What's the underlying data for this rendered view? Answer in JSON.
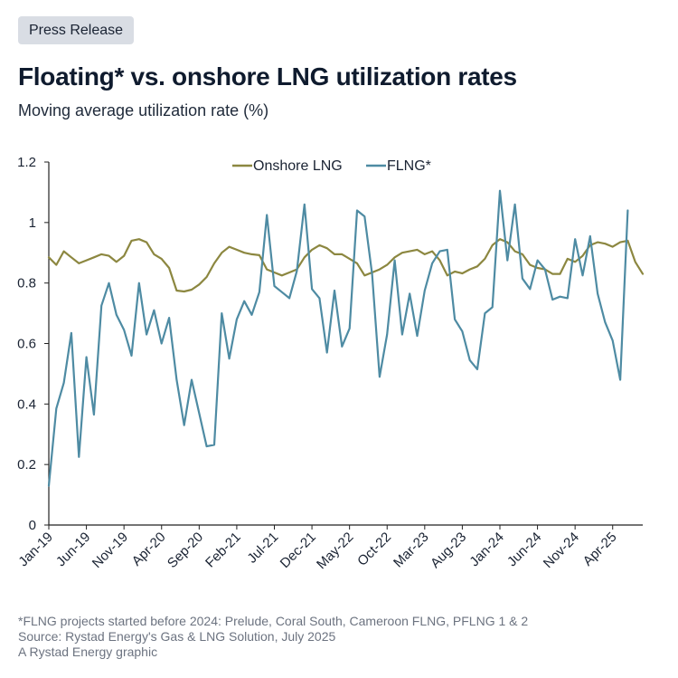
{
  "badge": "Press Release",
  "title": "Floating* vs. onshore LNG utilization rates",
  "subtitle": "Moving average utilization rate (%)",
  "footer": {
    "note": "*FLNG projects started before 2024: Prelude, Coral South, Cameroon FLNG, PFLNG 1 & 2",
    "source": "Source: Rystad Energy's Gas & LNG Solution, July 2025",
    "credit": "A Rystad Energy graphic"
  },
  "colors": {
    "onshore": "#8c8740",
    "flng": "#4e8ba3",
    "axis": "#222222",
    "text": "#1a2333"
  },
  "chart_data": {
    "type": "line",
    "title": "Floating* vs. onshore LNG utilization rates",
    "xlabel": "",
    "ylabel": "Moving average utilization rate (%)",
    "ylim": [
      0,
      1.2
    ],
    "yticks": [
      "0",
      "0.2",
      "0.4",
      "0.6",
      "0.8",
      "1",
      "1.2"
    ],
    "ytick_values": [
      0,
      0.2,
      0.4,
      0.6,
      0.8,
      1.0,
      1.2
    ],
    "xticks": [
      "Jan-19",
      "Jun-19",
      "Nov-19",
      "Apr-20",
      "Sep-20",
      "Feb-21",
      "Jul-21",
      "Dec-21",
      "May-22",
      "Oct-22",
      "Mar-23",
      "Aug-23",
      "Jan-24",
      "Jun-24",
      "Nov-24",
      "Apr-25"
    ],
    "xtick_index": [
      0,
      5,
      10,
      15,
      20,
      25,
      30,
      35,
      40,
      45,
      50,
      55,
      60,
      65,
      70,
      75
    ],
    "legend": "top-center",
    "series": [
      {
        "name": "Onshore LNG",
        "values": [
          0.885,
          0.86,
          0.905,
          0.885,
          0.865,
          0.875,
          0.885,
          0.895,
          0.89,
          0.87,
          0.89,
          0.94,
          0.945,
          0.935,
          0.895,
          0.88,
          0.85,
          0.775,
          0.772,
          0.778,
          0.795,
          0.82,
          0.865,
          0.9,
          0.92,
          0.91,
          0.9,
          0.895,
          0.892,
          0.845,
          0.835,
          0.825,
          0.835,
          0.845,
          0.885,
          0.91,
          0.925,
          0.915,
          0.895,
          0.895,
          0.88,
          0.865,
          0.825,
          0.835,
          0.845,
          0.86,
          0.885,
          0.9,
          0.905,
          0.91,
          0.895,
          0.905,
          0.875,
          0.825,
          0.838,
          0.832,
          0.845,
          0.855,
          0.88,
          0.925,
          0.945,
          0.935,
          0.905,
          0.895,
          0.86,
          0.85,
          0.845,
          0.83,
          0.83,
          0.88,
          0.87,
          0.89,
          0.925,
          0.935,
          0.93,
          0.92,
          0.935,
          0.94,
          0.87,
          0.83
        ],
        "color": "#8c8740"
      },
      {
        "name": "FLNG*",
        "values": [
          0.13,
          0.385,
          0.47,
          0.635,
          0.225,
          0.555,
          0.365,
          0.725,
          0.8,
          0.695,
          0.645,
          0.56,
          0.8,
          0.63,
          0.71,
          0.6,
          0.685,
          0.48,
          0.33,
          0.48,
          0.37,
          0.26,
          0.265,
          0.7,
          0.55,
          0.68,
          0.74,
          0.695,
          0.77,
          1.025,
          0.79,
          0.77,
          0.75,
          0.84,
          1.06,
          0.78,
          0.75,
          0.57,
          0.775,
          0.59,
          0.65,
          1.04,
          1.02,
          0.83,
          0.49,
          0.63,
          0.875,
          0.63,
          0.765,
          0.625,
          0.775,
          0.865,
          0.905,
          0.91,
          0.68,
          0.64,
          0.545,
          0.515,
          0.7,
          0.72,
          1.105,
          0.875,
          1.06,
          0.815,
          0.78,
          0.875,
          0.845,
          0.745,
          0.755,
          0.75,
          0.945,
          0.825,
          0.955,
          0.765,
          0.67,
          0.61,
          0.48,
          1.04
        ],
        "color": "#4e8ba3"
      }
    ]
  }
}
